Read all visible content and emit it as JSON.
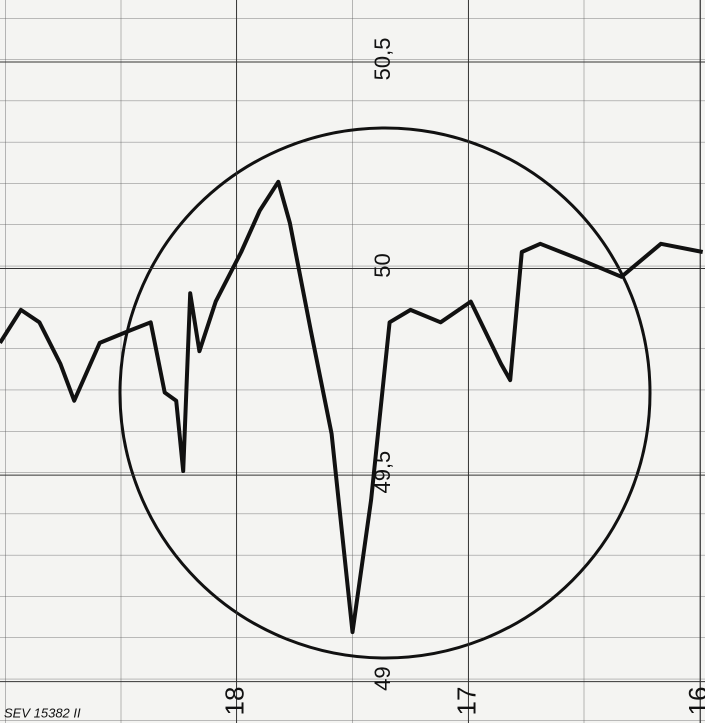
{
  "chart_data": {
    "type": "line",
    "footer": "SEV 15382 II",
    "x": [
      19.02,
      18.93,
      18.85,
      18.76,
      18.7,
      18.59,
      18.46,
      18.37,
      18.31,
      18.26,
      18.23,
      18.2,
      18.16,
      18.09,
      17.98,
      17.9,
      17.82,
      17.77,
      17.68,
      17.59,
      17.5,
      17.42,
      17.34,
      17.25,
      17.12,
      16.99,
      16.86,
      16.82,
      16.77,
      16.69,
      16.51,
      16.34,
      16.17,
      15.99
    ],
    "series": [
      {
        "color": "#111111",
        "values": [
          49.82,
          49.9,
          49.87,
          49.77,
          49.68,
          49.82,
          49.85,
          49.87,
          49.7,
          49.68,
          49.51,
          49.94,
          49.8,
          49.92,
          50.04,
          50.14,
          50.21,
          50.11,
          49.85,
          49.6,
          49.12,
          49.44,
          49.87,
          49.9,
          49.87,
          49.92,
          49.77,
          49.73,
          50.04,
          50.06,
          50.02,
          49.98,
          50.06,
          50.04
        ]
      }
    ],
    "xlim": [
      19.02,
      15.98
    ],
    "xticks": [
      18,
      17,
      16
    ],
    "ylim": [
      48.9,
      50.65
    ],
    "yticks": [
      {
        "value": 49,
        "label": "49"
      },
      {
        "value": 49.5,
        "label": "49,5"
      },
      {
        "value": 50,
        "label": "50"
      },
      {
        "value": 50.5,
        "label": "50,5"
      }
    ],
    "grid": true
  }
}
